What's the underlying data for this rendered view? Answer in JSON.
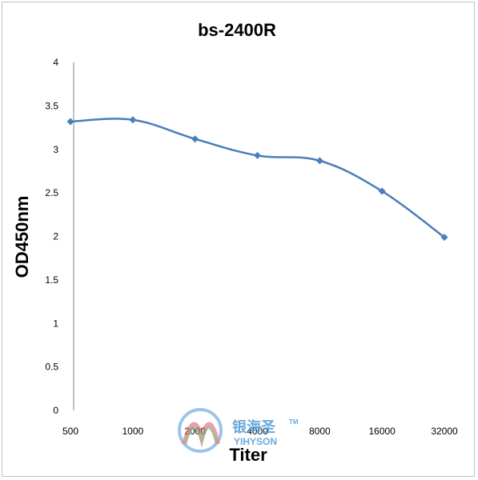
{
  "chart_data": {
    "type": "line",
    "title": "bs-2400R",
    "xlabel": "Titer",
    "ylabel": "OD450nm",
    "categories": [
      "500",
      "1000",
      "2000",
      "4000",
      "8000",
      "16000",
      "32000"
    ],
    "series": [
      {
        "values": [
          3.32,
          3.34,
          3.12,
          2.93,
          2.87,
          2.52,
          1.99
        ]
      }
    ],
    "yticks": [
      "0",
      "0.5",
      "1",
      "1.5",
      "2",
      "2.5",
      "3",
      "3.5",
      "4"
    ],
    "ylim": [
      0,
      4
    ],
    "grid": false,
    "legend": "none",
    "colors": {
      "line": "#4a7ebb",
      "axis": "#868686"
    }
  },
  "watermark": {
    "text_cn": "银海圣",
    "text_en": "YIHYSON",
    "tm": "TM"
  }
}
